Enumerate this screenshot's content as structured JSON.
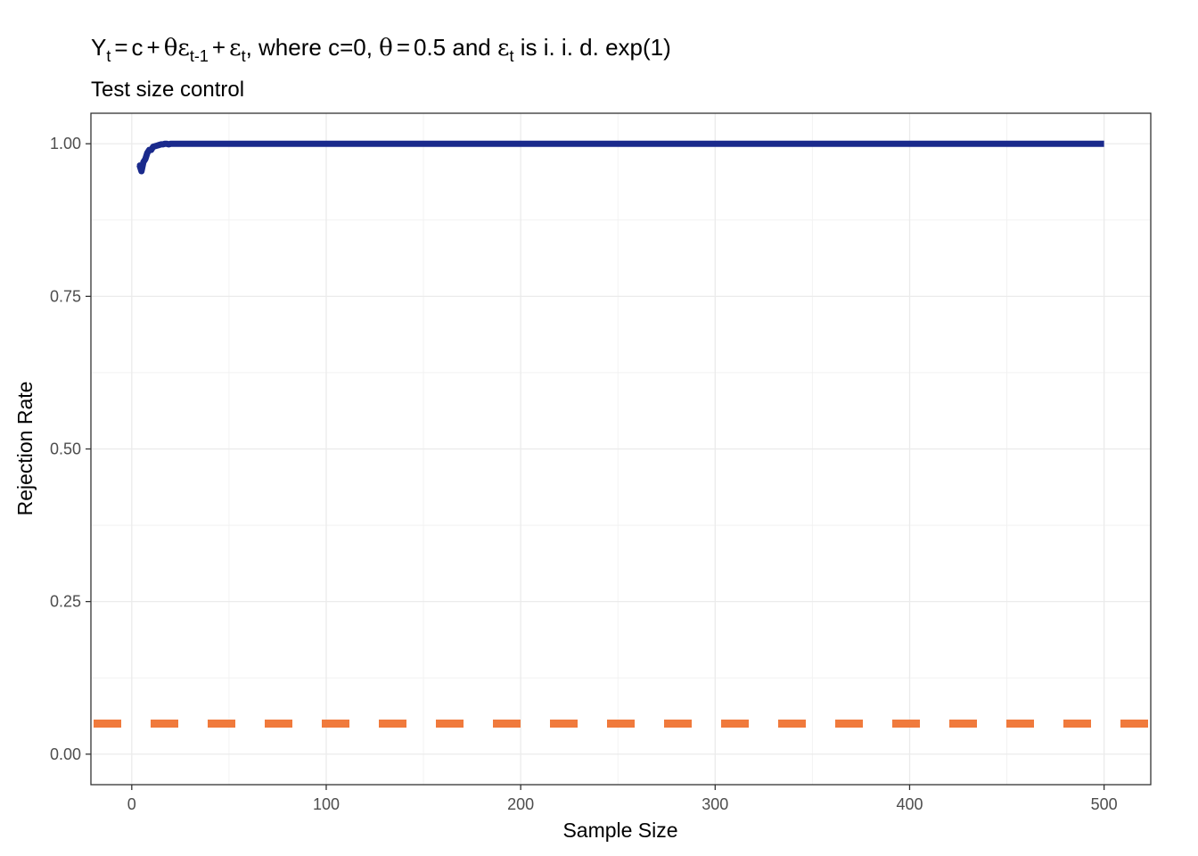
{
  "chart_data": {
    "type": "line",
    "title": {
      "y": "Y",
      "t_sub": "t",
      "eq": "=",
      "c": "c",
      "plus1": "+",
      "theta": "θ",
      "eps1": "ε",
      "tm1_sub": "t-1",
      "plus2": "+",
      "eps2": "ε",
      "t_sub2": "t",
      "text1": ", where c=0, ",
      "theta2": "θ",
      "eq2": "=",
      "text2": "0.5 and ",
      "eps3": "ε",
      "t_sub3": "t",
      "text3": " is i. i. d. exp(1)"
    },
    "subtitle": "Test size control",
    "xlabel": "Sample Size",
    "ylabel": "Rejection Rate",
    "xlim": [
      -21,
      524
    ],
    "ylim": [
      -0.05,
      1.05
    ],
    "x_ticks": [
      0,
      100,
      200,
      300,
      400,
      500
    ],
    "x_tick_labels": [
      "0",
      "100",
      "200",
      "300",
      "400",
      "500"
    ],
    "y_ticks": [
      0,
      0.25,
      0.5,
      0.75,
      1
    ],
    "y_tick_labels": [
      "0.00",
      "0.25",
      "0.50",
      "0.75",
      "1.00"
    ],
    "grid": true,
    "series": [
      {
        "role": "rejection-rate",
        "color": "#1a2a8c",
        "x": [
          4,
          5,
          6,
          7,
          8,
          9,
          10,
          11,
          12,
          13,
          14,
          15,
          16,
          17,
          18,
          19,
          20,
          22,
          24,
          26,
          30,
          40,
          60,
          100,
          200,
          300,
          400,
          500
        ],
        "y": [
          0.965,
          0.955,
          0.97,
          0.975,
          0.985,
          0.99,
          0.99,
          0.995,
          0.996,
          0.997,
          0.998,
          0.999,
          0.999,
          1.0,
          1.0,
          0.999,
          1.0,
          1.0,
          1.0,
          1.0,
          1.0,
          1.0,
          1.0,
          1.0,
          1.0,
          1.0,
          1.0,
          1.0
        ]
      }
    ],
    "reference_line": {
      "y": 0.05,
      "color": "#f07a3c",
      "style": "dashed"
    }
  }
}
